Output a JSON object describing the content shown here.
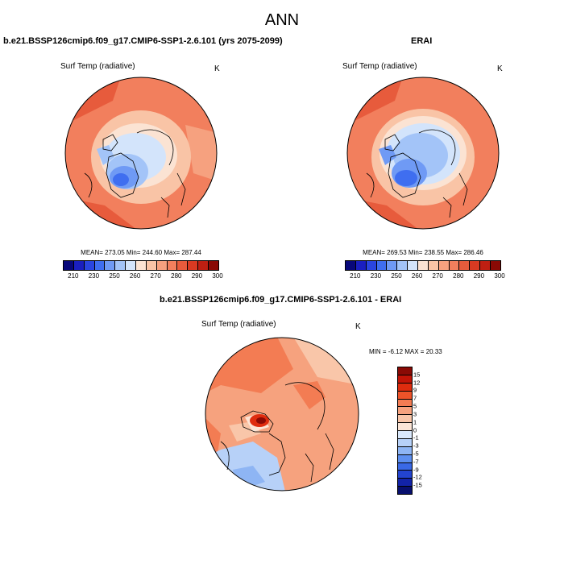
{
  "title": "ANN",
  "panels": [
    {
      "title": "b.e21.BSSP126cmip6.f09_g17.CMIP6-SSP1-2.6.101 (yrs 2075-2099)",
      "variable": "Surf Temp (radiative)",
      "units": "K",
      "stats": "MEAN= 273.05  Min= 244.60  Max= 287.44"
    },
    {
      "title": "ERAI",
      "variable": "Surf Temp (radiative)",
      "units": "K",
      "stats": "MEAN= 269.53  Min= 238.55  Max= 286.46"
    },
    {
      "title": "b.e21.BSSP126cmip6.f09_g17.CMIP6-SSP1-2.6.101 - ERAI",
      "variable": "Surf Temp (radiative)",
      "units": "K",
      "stats": "MIN =  -6.12 MAX =  20.33"
    }
  ],
  "abs_colorbar": {
    "colors": [
      "#08087a",
      "#1a1fc0",
      "#2a45e0",
      "#3f6ef0",
      "#6f9af5",
      "#a3c4f8",
      "#d3e4fb",
      "#fbe3d3",
      "#f9c4a6",
      "#f6a17f",
      "#f27f5d",
      "#e75b3c",
      "#d93a22",
      "#bf1f12",
      "#8a0a05"
    ],
    "ticks": [
      "210",
      "230",
      "250",
      "260",
      "270",
      "280",
      "290",
      "300"
    ]
  },
  "diff_colorbar": {
    "colors": [
      "#8a0a05",
      "#c21407",
      "#df2c0e",
      "#ee5329",
      "#f37c53",
      "#f6a27e",
      "#f9c6a9",
      "#fce5d6",
      "#d9e8fb",
      "#b7d1f8",
      "#8eb5f4",
      "#5d8ff0",
      "#3a69e6",
      "#2344cf",
      "#1223a8",
      "#080f6e"
    ],
    "ticks": [
      "15",
      "12",
      "9",
      "7",
      "5",
      "3",
      "1",
      "0",
      "-1",
      "-3",
      "-5",
      "-7",
      "-9",
      "-12",
      "-15"
    ]
  },
  "colors": {
    "warm": "#f6a17f",
    "warm_strong": "#e75b3c",
    "cool": "#d3e4fb",
    "cool_strong": "#6f9af5"
  }
}
